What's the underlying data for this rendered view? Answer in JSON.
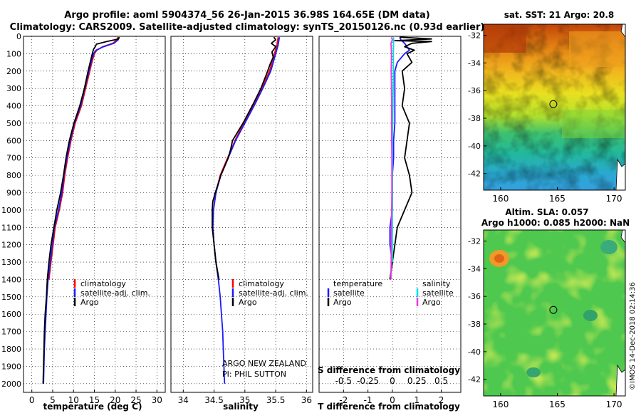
{
  "header": {
    "line1": "Argo profile: aoml 5904374_56 26-Jan-2015 36.98S 164.65E (DM data)",
    "line2": "Climatology: CARS2009. Satellite-adjusted climatology: synTS_20150126.nc (0.93d earlier)"
  },
  "colors": {
    "climatology": "#ff0000",
    "satellite": "#1a1aff",
    "argo": "#000000",
    "salinity_argo": "#e43ce4",
    "salinity_satellite": "#00e0e0"
  },
  "credits": {
    "line1": "ARGO NEW ZEALAND",
    "line2": "PI: PHIL SUTTON",
    "timestamp": "©IMOS 14-Dec-2018 02:14:36"
  },
  "chart_data": [
    {
      "id": "temperature",
      "type": "line",
      "xlabel": "temperature (deg C)",
      "ylabel": "",
      "xlim": [
        -2,
        32
      ],
      "ylim": [
        2050,
        0
      ],
      "xticks": [
        0,
        5,
        10,
        15,
        20,
        25,
        30
      ],
      "xtick_labels": [
        "0",
        "5",
        "10",
        "15",
        "20",
        "25",
        "30"
      ],
      "yticks": [
        0,
        100,
        200,
        300,
        400,
        500,
        600,
        700,
        800,
        900,
        1000,
        1100,
        1200,
        1300,
        1400,
        1500,
        1600,
        1700,
        1800,
        1900,
        2000
      ],
      "ytick_labels": [
        "0",
        "100",
        "200",
        "300",
        "400",
        "500",
        "600",
        "700",
        "800",
        "900",
        "1000",
        "1100",
        "1200",
        "1300",
        "1400",
        "1500",
        "1600",
        "1700",
        "1800",
        "1900",
        "2000"
      ],
      "legend": [
        "climatology",
        "satellite-adj. clim.",
        "Argo"
      ],
      "series": [
        {
          "name": "climatology",
          "color": "#ff0000",
          "depth": [
            5,
            20,
            40,
            60,
            80,
            100,
            150,
            200,
            300,
            400,
            500,
            600,
            700,
            800,
            900,
            1000,
            1100,
            1200,
            1300,
            1400
          ],
          "values": [
            20.6,
            20.4,
            19.4,
            17.0,
            15.6,
            15.0,
            14.4,
            13.9,
            12.9,
            11.9,
            10.4,
            9.4,
            8.6,
            7.9,
            7.4,
            6.6,
            5.6,
            5.1,
            4.6,
            4.1
          ]
        },
        {
          "name": "satellite-adj. clim.",
          "color": "#1a1aff",
          "depth": [
            5,
            20,
            40,
            60,
            80,
            100,
            150,
            200,
            300,
            400,
            500,
            600,
            700,
            800,
            900,
            1000,
            1100,
            1200,
            1300,
            1400,
            1500,
            1600,
            1700,
            1800,
            1900,
            2000
          ],
          "values": [
            20.9,
            20.7,
            19.7,
            17.2,
            15.4,
            14.8,
            14.2,
            13.7,
            12.7,
            11.7,
            10.2,
            9.2,
            8.4,
            7.7,
            7.2,
            6.4,
            5.4,
            4.9,
            4.4,
            3.9,
            3.6,
            3.4,
            3.2,
            3.0,
            2.9,
            2.8
          ]
        },
        {
          "name": "Argo",
          "color": "#000000",
          "depth": [
            5,
            15,
            30,
            45,
            60,
            75,
            100,
            150,
            200,
            300,
            400,
            500,
            600,
            700,
            800,
            900,
            1000,
            1100,
            1200,
            1300,
            1400,
            1500,
            1600,
            1700,
            1800,
            1900,
            2000
          ],
          "values": [
            21.0,
            20.8,
            18.0,
            15.5,
            15.2,
            14.8,
            14.5,
            14.0,
            13.5,
            12.6,
            11.5,
            10.1,
            9.0,
            8.2,
            7.6,
            6.9,
            6.0,
            5.3,
            4.6,
            4.1,
            3.7,
            3.5,
            3.2,
            3.0,
            2.9,
            2.8,
            2.7
          ]
        }
      ]
    },
    {
      "id": "salinity",
      "type": "line",
      "xlabel": "salinity",
      "xlim": [
        33.8,
        36.1
      ],
      "ylim": [
        2050,
        0
      ],
      "xticks": [
        34,
        34.5,
        35,
        35.5,
        36
      ],
      "xtick_labels": [
        "34",
        "34.5",
        "35",
        "35.5",
        "36"
      ],
      "legend": [
        "climatology",
        "satellite-adj. clim.",
        "Argo"
      ],
      "series": [
        {
          "name": "climatology",
          "color": "#ff0000",
          "depth": [
            5,
            50,
            100,
            200,
            300,
            400,
            500,
            600,
            700,
            800,
            900,
            1000,
            1100,
            1200,
            1300,
            1400
          ],
          "values": [
            35.54,
            35.52,
            35.48,
            35.4,
            35.27,
            35.13,
            34.98,
            34.84,
            34.72,
            34.6,
            34.53,
            34.49,
            34.48,
            34.5,
            34.53,
            34.57
          ]
        },
        {
          "name": "satellite-adj. clim.",
          "color": "#1a1aff",
          "depth": [
            5,
            50,
            100,
            200,
            300,
            400,
            500,
            600,
            700,
            800,
            900,
            1000,
            1100,
            1200,
            1300,
            1400,
            1500,
            1600,
            1700,
            1800,
            1900,
            2000
          ],
          "values": [
            35.56,
            35.54,
            35.5,
            35.42,
            35.29,
            35.15,
            35.0,
            34.85,
            34.73,
            34.61,
            34.53,
            34.49,
            34.48,
            34.5,
            34.53,
            34.57,
            34.6,
            34.62,
            34.64,
            34.65,
            34.66,
            34.67
          ]
        },
        {
          "name": "Argo",
          "color": "#000000",
          "depth": [
            5,
            20,
            40,
            60,
            90,
            120,
            160,
            200,
            300,
            400,
            500,
            600,
            650,
            700,
            800,
            900,
            950,
            1000,
            1100,
            1200,
            1300,
            1400
          ],
          "values": [
            35.47,
            35.5,
            35.43,
            35.5,
            35.44,
            35.46,
            35.41,
            35.37,
            35.26,
            35.12,
            34.97,
            34.8,
            34.77,
            34.73,
            34.61,
            34.52,
            34.48,
            34.47,
            34.47,
            34.5,
            34.53,
            34.58
          ]
        }
      ]
    },
    {
      "id": "difference",
      "type": "line",
      "xlabel": "T difference from climatology",
      "xlabel_top": "S difference from climatology",
      "xlim": [
        -3,
        2.8
      ],
      "ylim": [
        2050,
        0
      ],
      "xticks": [
        -2,
        -1,
        0,
        1,
        2
      ],
      "xtick_labels": [
        "-2",
        "-1",
        "0",
        "1",
        "2"
      ],
      "s_ticks": [
        -0.5,
        -0.25,
        0,
        0.25,
        0.5
      ],
      "s_tick_labels": [
        "-0.5",
        "-0.25",
        "0",
        "0.25",
        "0.5"
      ],
      "legend_temperature": {
        "title": "temperature",
        "items": [
          "satellite",
          "Argo"
        ]
      },
      "legend_salinity": {
        "title": "salinity",
        "items": [
          "satellite",
          "Argo"
        ]
      },
      "series": [
        {
          "name": "temperature satellite",
          "color": "#1a1aff",
          "depth": [
            5,
            20,
            40,
            60,
            80,
            100,
            150,
            200,
            300,
            400,
            500,
            600,
            700,
            800,
            900,
            1000,
            1100,
            1200,
            1300
          ],
          "values": [
            0.3,
            0.35,
            0.5,
            0.6,
            0.7,
            0.5,
            0.2,
            0.1,
            0.1,
            0.1,
            0.1,
            0.05,
            0.05,
            0.0,
            0.0,
            0.0,
            -0.1,
            -0.1,
            0.0
          ]
        },
        {
          "name": "temperature Argo",
          "color": "#000000",
          "depth": [
            5,
            15,
            25,
            30,
            40,
            60,
            80,
            100,
            150,
            200,
            300,
            400,
            500,
            600,
            700,
            800,
            900,
            1000,
            1100,
            1200,
            1300,
            1400
          ],
          "values": [
            0.3,
            1.6,
            0.1,
            1.6,
            0.8,
            0.5,
            0.9,
            0.6,
            0.8,
            0.4,
            0.5,
            0.4,
            0.7,
            0.6,
            0.5,
            0.7,
            0.8,
            0.5,
            0.2,
            0.1,
            0.0,
            -0.1
          ]
        },
        {
          "name": "salinity satellite",
          "color": "#00e0e0",
          "depth": [
            5,
            50,
            100,
            200,
            300,
            400,
            500,
            600,
            700,
            800,
            900,
            1000,
            1100,
            1200,
            1300
          ],
          "values": [
            0.05,
            0.05,
            0.04,
            0.04,
            0.03,
            0.02,
            0.01,
            0.0,
            0.0,
            0.0,
            0.0,
            0.0,
            0.0,
            0.0,
            0.0
          ]
        },
        {
          "name": "salinity Argo",
          "color": "#e43ce4",
          "depth": [
            5,
            20,
            40,
            60,
            100,
            200,
            300,
            400,
            500,
            600,
            700,
            800,
            900,
            1000,
            1100,
            1200,
            1300,
            1400
          ],
          "values": [
            -0.04,
            0.0,
            -0.06,
            -0.05,
            -0.04,
            -0.05,
            -0.04,
            -0.03,
            -0.03,
            -0.03,
            -0.02,
            -0.02,
            -0.02,
            -0.03,
            -0.04,
            -0.05,
            -0.05,
            -0.06
          ]
        }
      ]
    },
    {
      "id": "sst_map",
      "type": "heatmap",
      "title": "sat. SST: 21 Argo: 20.8",
      "xlim": [
        158.5,
        171
      ],
      "ylim": [
        -43.2,
        -31.2
      ],
      "xticks": [
        160,
        165,
        170
      ],
      "xtick_labels": [
        "160",
        "165",
        "170"
      ],
      "yticks": [
        -32,
        -34,
        -36,
        -38,
        -40,
        -42
      ],
      "ytick_labels": [
        "-32",
        "-34",
        "-36",
        "-38",
        "-40",
        "-42"
      ],
      "profile_location": {
        "lon": 164.65,
        "lat": -36.98
      }
    },
    {
      "id": "sla_map",
      "type": "heatmap",
      "title": "Altim. SLA: 0.057",
      "subtitle": "Argo h1000: 0.085 h2000: NaN",
      "xlim": [
        158.5,
        171
      ],
      "ylim": [
        -43.2,
        -31.2
      ],
      "xticks": [
        160,
        165,
        170
      ],
      "xtick_labels": [
        "160",
        "165",
        "170"
      ],
      "yticks": [
        -32,
        -34,
        -36,
        -38,
        -40,
        -42
      ],
      "ytick_labels": [
        "-32",
        "-34",
        "-36",
        "-38",
        "-40",
        "-42"
      ],
      "profile_location": {
        "lon": 164.65,
        "lat": -36.98
      }
    }
  ]
}
